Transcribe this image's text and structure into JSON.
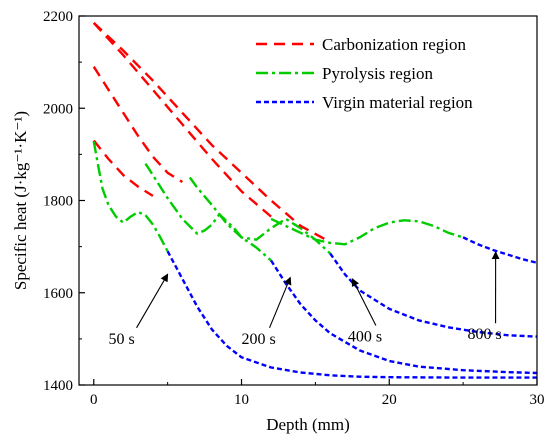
{
  "chart_data": {
    "type": "line",
    "xlabel": "Depth (mm)",
    "ylabel": "Specific heat (J·kg⁻¹·K⁻¹)",
    "xlim": [
      -1,
      30
    ],
    "ylim": [
      1400,
      2200
    ],
    "xticks": [
      0,
      10,
      20,
      30
    ],
    "yticks": [
      1400,
      1600,
      1800,
      2000,
      2200
    ],
    "grid": false,
    "legend": {
      "position": "top-right",
      "entries": [
        {
          "label": "Carbonization region",
          "color": "#ff0000",
          "dash": "dashed"
        },
        {
          "label": "Pyrolysis region",
          "color": "#00cc00",
          "dash": "dash-dot"
        },
        {
          "label": "Virgin material region",
          "color": "#0000ff",
          "dash": "short-dash"
        }
      ]
    },
    "curves": [
      {
        "time": "50 s",
        "segments": [
          {
            "region": "carbonization",
            "x": [
              0,
              1,
              2,
              3,
              4
            ],
            "y": [
              1930,
              1890,
              1855,
              1830,
              1810
            ]
          },
          {
            "region": "pyrolysis",
            "x": [
              0,
              0.3,
              0.6,
              1,
              1.5,
              2,
              2.5,
              3,
              3.5,
              4,
              4.5,
              5
            ],
            "y": [
              1928,
              1875,
              1825,
              1790,
              1765,
              1752,
              1765,
              1775,
              1768,
              1748,
              1720,
              1690
            ]
          },
          {
            "region": "virgin",
            "x": [
              5,
              6,
              7,
              8,
              9,
              10,
              12,
              14,
              16,
              18,
              20,
              25,
              30
            ],
            "y": [
              1690,
              1630,
              1570,
              1520,
              1485,
              1460,
              1438,
              1427,
              1421,
              1418,
              1417,
              1416,
              1416
            ]
          }
        ]
      },
      {
        "time": "200 s",
        "segments": [
          {
            "region": "carbonization",
            "x": [
              0,
              1,
              2,
              3,
              4,
              5,
              6
            ],
            "y": [
              2090,
              2040,
              1990,
              1940,
              1895,
              1860,
              1840
            ]
          },
          {
            "region": "pyrolysis",
            "x": [
              3.5,
              4,
              5,
              6,
              7,
              7.5,
              8,
              8.5,
              9,
              9.5,
              10,
              11,
              12
            ],
            "y": [
              1880,
              1855,
              1805,
              1760,
              1728,
              1735,
              1748,
              1770,
              1755,
              1740,
              1720,
              1698,
              1670
            ]
          },
          {
            "region": "virgin",
            "x": [
              12,
              13,
              14,
              15,
              16,
              18,
              20,
              22,
              25,
              28,
              30
            ],
            "y": [
              1670,
              1620,
              1575,
              1540,
              1512,
              1475,
              1452,
              1440,
              1432,
              1428,
              1426
            ]
          }
        ]
      },
      {
        "time": "400 s",
        "segments": [
          {
            "region": "carbonization",
            "x": [
              0,
              2,
              4,
              6,
              8,
              10,
              12
            ],
            "y": [
              2185,
              2115,
              2040,
              1965,
              1890,
              1820,
              1765
            ]
          },
          {
            "region": "pyrolysis",
            "x": [
              6.5,
              7,
              8,
              9,
              10,
              11,
              12,
              13,
              13.5,
              14,
              15,
              16
            ],
            "y": [
              1850,
              1828,
              1790,
              1750,
              1720,
              1715,
              1740,
              1760,
              1750,
              1740,
              1715,
              1685
            ]
          },
          {
            "region": "virgin",
            "x": [
              16,
              17,
              18,
              20,
              22,
              24,
              26,
              28,
              30
            ],
            "y": [
              1685,
              1640,
              1605,
              1565,
              1540,
              1525,
              1515,
              1508,
              1505
            ]
          }
        ]
      },
      {
        "time": "800 s",
        "segments": [
          {
            "region": "carbonization",
            "x": [
              0,
              2,
              4,
              6,
              8,
              10,
              12,
              14,
              16
            ],
            "y": [
              2185,
              2125,
              2060,
              1990,
              1920,
              1860,
              1800,
              1745,
              1710
            ]
          },
          {
            "region": "pyrolysis",
            "x": [
              12,
              13,
              14,
              15,
              16,
              17,
              18,
              19,
              20,
              21,
              22,
              23,
              24,
              25
            ],
            "y": [
              1760,
              1745,
              1730,
              1715,
              1708,
              1705,
              1720,
              1740,
              1752,
              1757,
              1755,
              1745,
              1730,
              1720
            ]
          },
          {
            "region": "virgin",
            "x": [
              25,
              26,
              27,
              28,
              29,
              30
            ],
            "y": [
              1720,
              1705,
              1693,
              1683,
              1673,
              1665
            ]
          }
        ]
      }
    ],
    "annotations": [
      {
        "text": "50 s",
        "x": 1.0,
        "y": 1550,
        "arrow_to": [
          5.0,
          1640
        ]
      },
      {
        "text": "200 s",
        "x": 10.0,
        "y": 1550,
        "arrow_to": [
          13.3,
          1633
        ]
      },
      {
        "text": "400 s",
        "x": 17.2,
        "y": 1555,
        "arrow_to": [
          17.5,
          1630
        ]
      },
      {
        "text": "800 s",
        "x": 25.3,
        "y": 1560,
        "arrow_to": [
          27.2,
          1688
        ]
      }
    ]
  }
}
